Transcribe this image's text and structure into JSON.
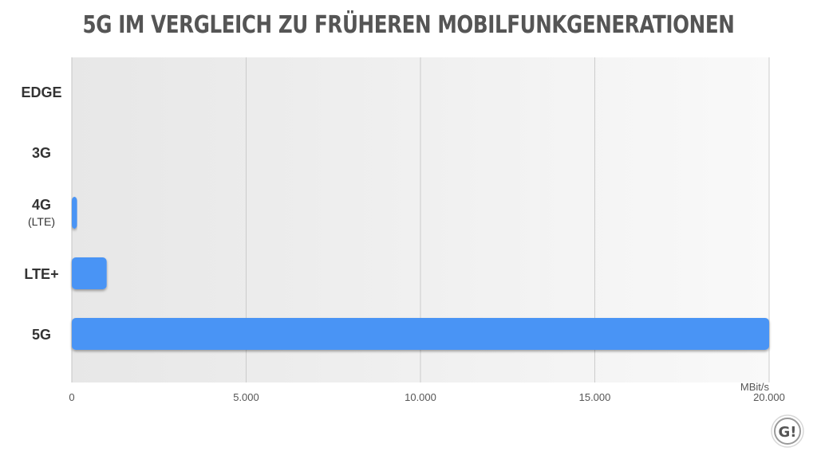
{
  "chart_data": {
    "type": "bar",
    "orientation": "horizontal",
    "title": "5G IM VERGLEICH ZU FRÜHEREN MOBILFUNKGENERATIONEN",
    "categories": [
      {
        "label": "EDGE",
        "sublabel": ""
      },
      {
        "label": "3G",
        "sublabel": ""
      },
      {
        "label": "4G",
        "sublabel": "(LTE)"
      },
      {
        "label": "LTE+",
        "sublabel": ""
      },
      {
        "label": "5G",
        "sublabel": ""
      }
    ],
    "values": [
      0.2,
      21,
      150,
      1000,
      20000
    ],
    "unit": "MBit/s",
    "xlim": [
      0,
      20000
    ],
    "ticks": [
      0,
      5000,
      10000,
      15000,
      20000
    ],
    "tick_labels": [
      "0",
      "5.000",
      "10.000",
      "15.000",
      "20.000"
    ],
    "grid": true,
    "bar_color": "#4a94f5"
  },
  "logo": {
    "text": "G!"
  }
}
